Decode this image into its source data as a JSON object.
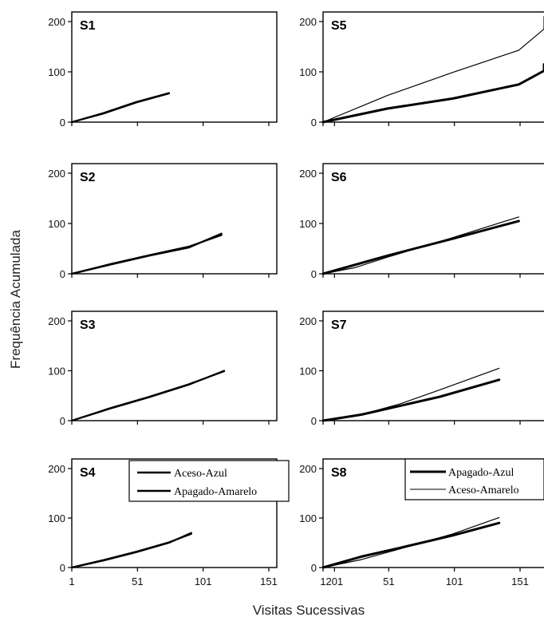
{
  "chart_data": {
    "type": "line",
    "xlabel": "Visitas Sucessivas",
    "ylabel": "Frequência Acumulada",
    "xlim": [
      1,
      231
    ],
    "ylim": [
      0,
      215
    ],
    "x_ticks": [
      "1",
      "51",
      "101",
      "151",
      "201"
    ],
    "y_ticks": [
      "0",
      "100",
      "200"
    ],
    "panels": [
      {
        "label": "S1",
        "series": [
          {
            "name": "Aceso-Azul",
            "x": [
              1,
              25,
              50,
              75
            ],
            "y": [
              0,
              18,
              40,
              58
            ]
          },
          {
            "name": "Apagado-Amarelo",
            "x": [
              1,
              25,
              50,
              75
            ],
            "y": [
              0,
              17,
              39,
              57
            ]
          }
        ]
      },
      {
        "label": "S2",
        "series": [
          {
            "name": "Aceso-Azul",
            "x": [
              1,
              30,
              60,
              90,
              115
            ],
            "y": [
              0,
              18,
              36,
              52,
              80
            ]
          },
          {
            "name": "Apagado-Amarelo",
            "x": [
              1,
              30,
              60,
              90,
              115
            ],
            "y": [
              0,
              19,
              37,
              54,
              77
            ]
          }
        ]
      },
      {
        "label": "S3",
        "series": [
          {
            "name": "Aceso-Azul",
            "x": [
              1,
              30,
              60,
              90,
              117
            ],
            "y": [
              0,
              24,
              47,
              72,
              100
            ]
          },
          {
            "name": "Apagado-Amarelo",
            "x": [
              1,
              30,
              60,
              90,
              117
            ],
            "y": [
              0,
              25,
              48,
              73,
              99
            ]
          }
        ]
      },
      {
        "label": "S4",
        "series": [
          {
            "name": "Aceso-Azul",
            "x": [
              1,
              25,
              50,
              75,
              92
            ],
            "y": [
              0,
              14,
              31,
              50,
              70
            ]
          },
          {
            "name": "Apagado-Amarelo",
            "x": [
              1,
              25,
              50,
              75,
              92
            ],
            "y": [
              0,
              15,
              32,
              51,
              68
            ]
          }
        ]
      },
      {
        "label": "S5",
        "series": [
          {
            "name": "Apagado-Azul",
            "x": [
              1,
              50,
              100,
              150,
              200,
              231
            ],
            "y": [
              0,
              27,
              47,
              75,
              102,
              115
            ]
          },
          {
            "name": "Aceso-Amarelo",
            "x": [
              1,
              50,
              100,
              150,
              200,
              231
            ],
            "y": [
              0,
              53,
              99,
              143,
              185,
              210
            ]
          }
        ]
      },
      {
        "label": "S6",
        "series": [
          {
            "name": "Apagado-Azul",
            "x": [
              1,
              50,
              100,
              150
            ],
            "y": [
              0,
              36,
              70,
              105
            ]
          },
          {
            "name": "Aceso-Amarelo",
            "x": [
              1,
              25,
              50,
              100,
              150
            ],
            "y": [
              0,
              12,
              33,
              72,
              113
            ]
          }
        ]
      },
      {
        "label": "S7",
        "series": [
          {
            "name": "Apagado-Azul",
            "x": [
              1,
              30,
              60,
              90,
              135
            ],
            "y": [
              0,
              12,
              30,
              48,
              82
            ]
          },
          {
            "name": "Aceso-Amarelo",
            "x": [
              1,
              30,
              60,
              90,
              135
            ],
            "y": [
              0,
              12,
              34,
              62,
              105
            ]
          }
        ]
      },
      {
        "label": "S8",
        "series": [
          {
            "name": "Apagado-Azul",
            "x": [
              1,
              30,
              60,
              100,
              135
            ],
            "y": [
              0,
              22,
              40,
              65,
              90
            ]
          },
          {
            "name": "Aceso-Amarelo",
            "x": [
              1,
              30,
              60,
              100,
              135
            ],
            "y": [
              0,
              16,
              38,
              68,
              101
            ]
          }
        ]
      }
    ],
    "legends": {
      "left": [
        {
          "name": "Aceso-Azul",
          "color": "#000000"
        },
        {
          "name": "Apagado-Amarelo",
          "color": "#000000"
        }
      ],
      "right": [
        {
          "name": "Apagado-Azul",
          "color": "#000000"
        },
        {
          "name": "Aceso-Amarelo",
          "color": "#000000"
        }
      ]
    },
    "legend_placement": {
      "left": "S4 top-right",
      "right": "S8 top-right"
    },
    "grid": false
  }
}
